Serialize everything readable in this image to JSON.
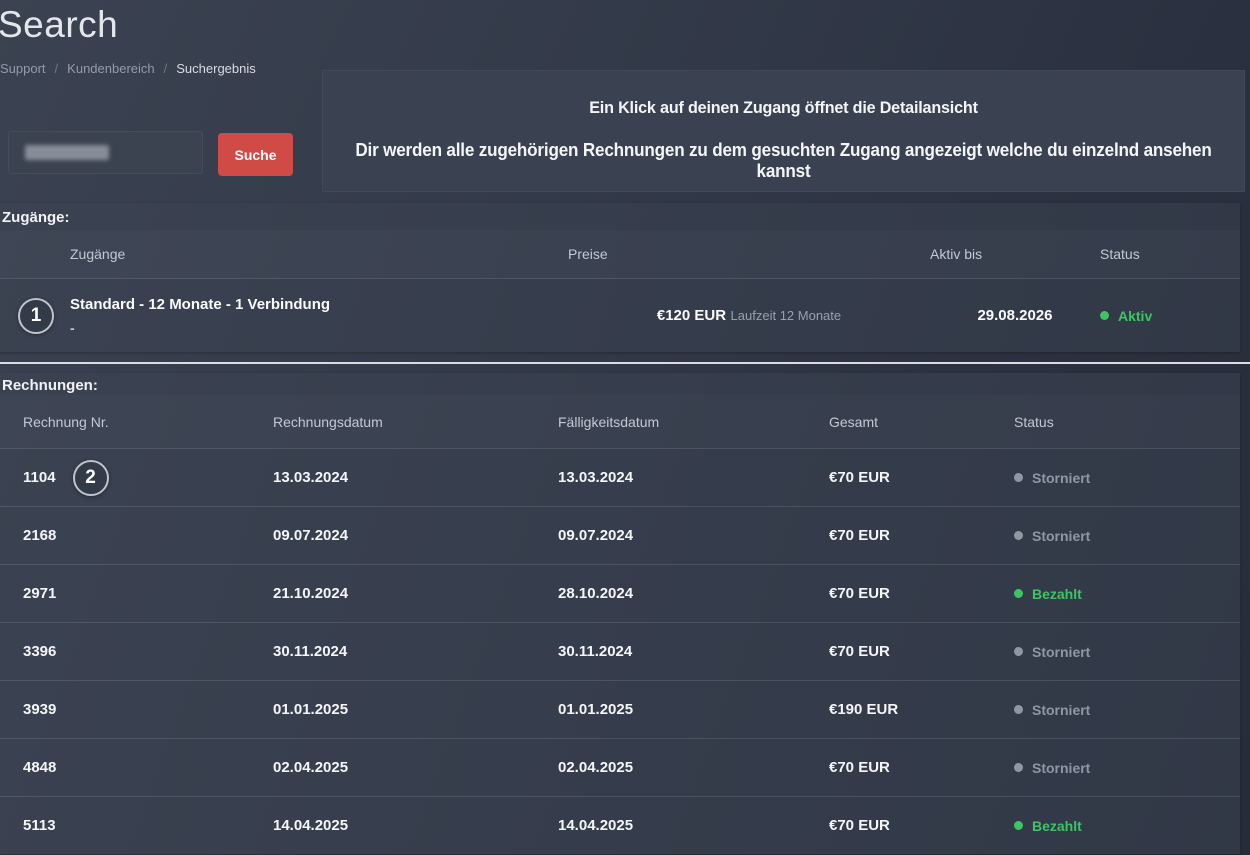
{
  "page": {
    "title": "Search"
  },
  "breadcrumb": {
    "separator": "/",
    "items": [
      "Support",
      "Kundenbereich",
      "Suchergebnis"
    ]
  },
  "search": {
    "button_label": "Suche",
    "input_value": ""
  },
  "info_box": {
    "line1": "Ein Klick auf deinen Zugang öffnet die Detailansicht",
    "line2": "Dir werden alle zugehörigen Rechnungen zu dem gesuchten Zugang angezeigt welche du einzelnd ansehen kannst"
  },
  "zugaenge": {
    "section_label": "Zugänge:",
    "columns": [
      "Zugänge",
      "Preise",
      "Aktiv bis",
      "Status"
    ],
    "rows": [
      {
        "badge": "1",
        "name": "Standard - 12 Monate - 1 Verbindung",
        "sub": "-",
        "price": "€120 EUR",
        "price_note": "Laufzeit 12 Monate",
        "aktiv_bis": "29.08.2026",
        "status_label": "Aktiv",
        "status_type": "active"
      }
    ]
  },
  "rechnungen": {
    "section_label": "Rechnungen:",
    "columns": [
      "Rechnung Nr.",
      "Rechnungsdatum",
      "Fälligkeitsdatum",
      "Gesamt",
      "Status"
    ],
    "rows": [
      {
        "nr": "1104",
        "badge": "2",
        "datum": "13.03.2024",
        "faellig": "13.03.2024",
        "gesamt": "€70 EUR",
        "status_label": "Storniert",
        "status_type": "muted"
      },
      {
        "nr": "2168",
        "datum": "09.07.2024",
        "faellig": "09.07.2024",
        "gesamt": "€70 EUR",
        "status_label": "Storniert",
        "status_type": "muted"
      },
      {
        "nr": "2971",
        "datum": "21.10.2024",
        "faellig": "28.10.2024",
        "gesamt": "€70 EUR",
        "status_label": "Bezahlt",
        "status_type": "success"
      },
      {
        "nr": "3396",
        "datum": "30.11.2024",
        "faellig": "30.11.2024",
        "gesamt": "€70 EUR",
        "status_label": "Storniert",
        "status_type": "muted"
      },
      {
        "nr": "3939",
        "datum": "01.01.2025",
        "faellig": "01.01.2025",
        "gesamt": "€190 EUR",
        "status_label": "Storniert",
        "status_type": "muted"
      },
      {
        "nr": "4848",
        "datum": "02.04.2025",
        "faellig": "02.04.2025",
        "gesamt": "€70 EUR",
        "status_label": "Storniert",
        "status_type": "muted"
      },
      {
        "nr": "5113",
        "datum": "14.04.2025",
        "faellig": "14.04.2025",
        "gesamt": "€70 EUR",
        "status_label": "Bezahlt",
        "status_type": "success"
      }
    ]
  },
  "colors": {
    "accent_red": "#d14b46",
    "success_green": "#3cc465",
    "muted_gray": "#8f97a3",
    "panel_bg": "#3a4150",
    "page_bg": "#2b3140"
  }
}
